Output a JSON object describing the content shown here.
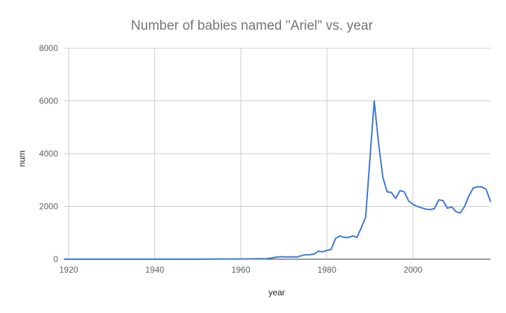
{
  "chart_data": {
    "type": "line",
    "title": "Number of babies named \"Ariel\" vs. year",
    "xlabel": "year",
    "ylabel": "num",
    "xlim": [
      1919,
      2018
    ],
    "ylim": [
      0,
      8000
    ],
    "x_ticks": [
      1920,
      1940,
      1960,
      1980,
      2000
    ],
    "x_tick_labels": [
      "1920",
      "1940",
      "1960",
      "1980",
      "2000"
    ],
    "y_ticks": [
      0,
      2000,
      4000,
      6000,
      8000
    ],
    "y_tick_labels": [
      "0",
      "2000",
      "4000",
      "6000",
      "8000"
    ],
    "grid": true,
    "legend": "none",
    "series": [
      {
        "color": "#3c78d8",
        "x": [
          1919,
          1930,
          1940,
          1950,
          1955,
          1960,
          1962,
          1964,
          1966,
          1967,
          1968,
          1969,
          1970,
          1971,
          1972,
          1973,
          1974,
          1975,
          1976,
          1977,
          1978,
          1979,
          1980,
          1981,
          1982,
          1983,
          1984,
          1985,
          1986,
          1987,
          1988,
          1989,
          1990,
          1991,
          1992,
          1993,
          1994,
          1995,
          1996,
          1997,
          1998,
          1999,
          2000,
          2001,
          2002,
          2003,
          2004,
          2005,
          2006,
          2007,
          2008,
          2009,
          2010,
          2011,
          2012,
          2013,
          2014,
          2015,
          2016,
          2017,
          2018
        ],
        "y": [
          0,
          0,
          0,
          0,
          5,
          10,
          10,
          15,
          20,
          40,
          70,
          90,
          90,
          80,
          90,
          80,
          130,
          170,
          170,
          190,
          300,
          280,
          330,
          370,
          780,
          880,
          830,
          820,
          880,
          830,
          1200,
          1600,
          3800,
          6000,
          4400,
          3100,
          2550,
          2530,
          2300,
          2600,
          2550,
          2200,
          2080,
          2000,
          1950,
          1900,
          1880,
          1920,
          2250,
          2220,
          1930,
          1980,
          1800,
          1750,
          2000,
          2400,
          2700,
          2740,
          2740,
          2650,
          2200
        ]
      }
    ]
  }
}
